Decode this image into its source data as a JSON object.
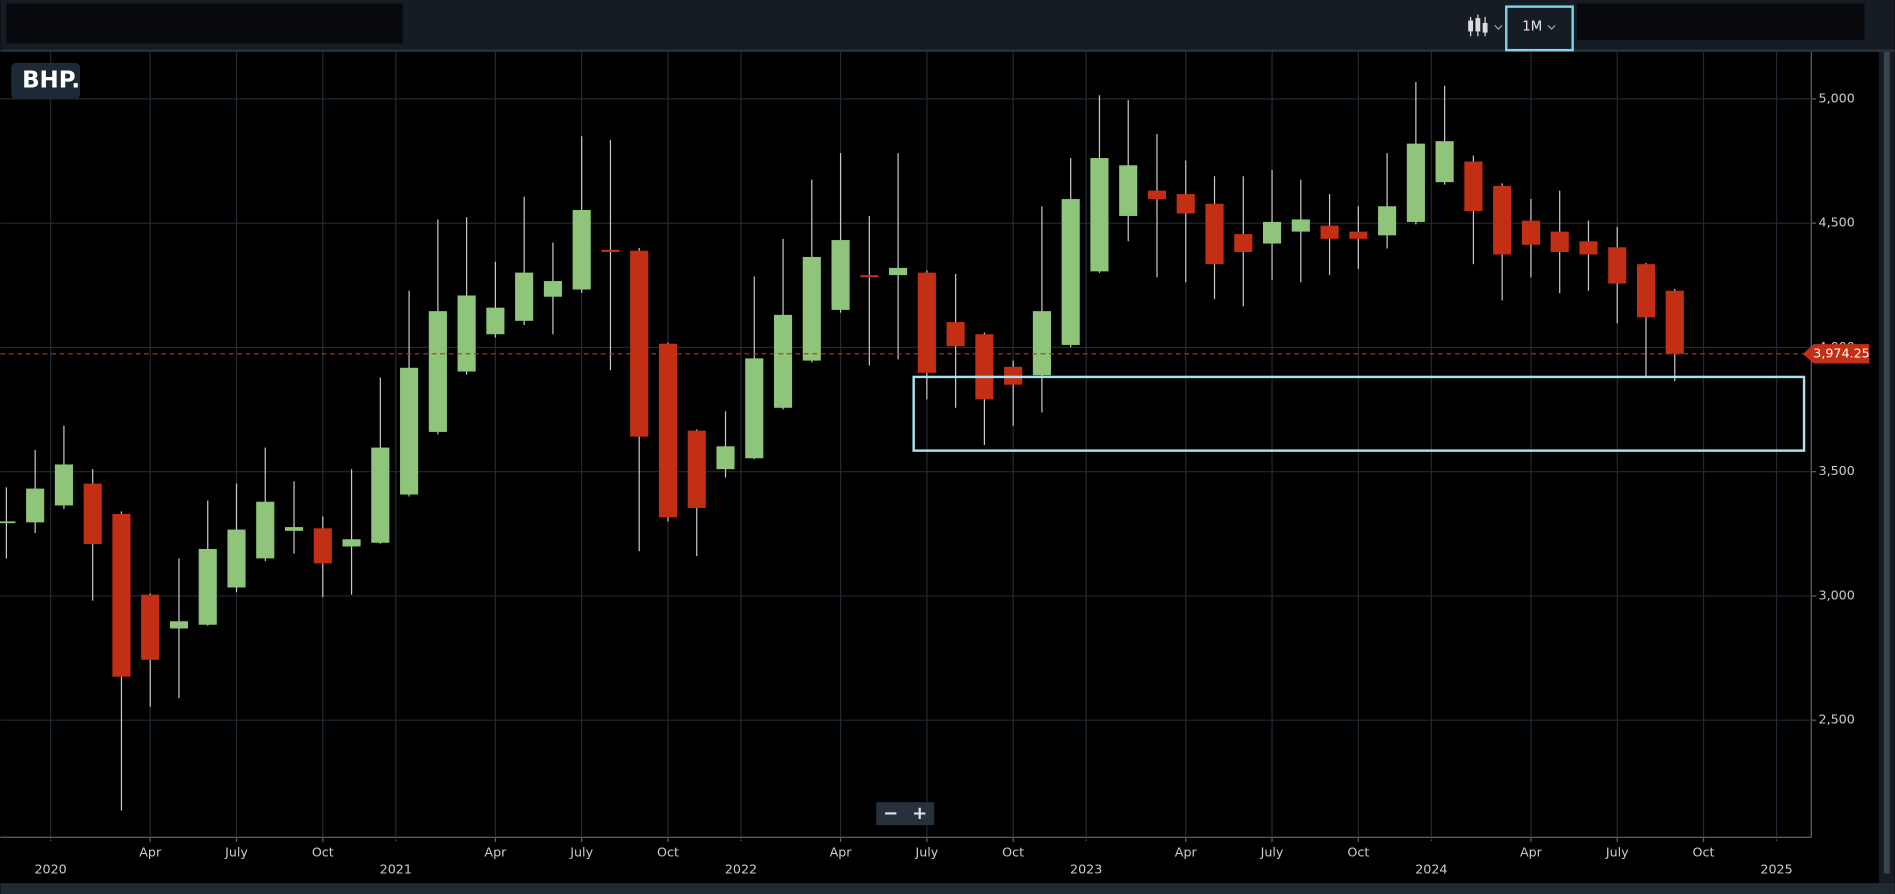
{
  "ui": {
    "symbol": "BHP.",
    "interval": "1M",
    "zoom_out": "−",
    "zoom_in": "+"
  },
  "chart_data": {
    "type": "candlestick",
    "categories": [
      null,
      null,
      "2020",
      null,
      null,
      "Apr",
      null,
      null,
      "July",
      null,
      null,
      "Oct",
      null,
      null,
      "2021",
      null,
      null,
      "Apr",
      null,
      null,
      "July",
      null,
      null,
      "Oct",
      null,
      null,
      "2022",
      null,
      null,
      "Apr",
      null,
      null,
      "July",
      null,
      null,
      "Oct",
      null,
      null,
      "2023",
      null,
      null,
      "Apr",
      null,
      null,
      "July",
      null,
      null,
      "Oct",
      null,
      null,
      "2024",
      null,
      null,
      "Apr",
      null,
      null,
      "July",
      null,
      null,
      "Oct",
      null,
      null,
      "2025"
    ],
    "open": [
      3296,
      3296,
      3364,
      3452,
      3330,
      3005,
      2869,
      2884,
      3034,
      3151,
      3262,
      3272,
      3199,
      3214,
      3408,
      3660,
      3903,
      4053,
      4107,
      4204,
      4233,
      4393,
      4389,
      4015,
      3665,
      3510,
      3554,
      3757,
      3947,
      4151,
      4291,
      4291,
      4301,
      4102,
      4053,
      3922,
      3888,
      4010,
      4306,
      4529,
      4631,
      4617,
      4578,
      4456,
      4418,
      4466,
      4490,
      4466,
      4451,
      4505,
      4665,
      4748,
      4650,
      4510,
      4466,
      4427,
      4403,
      4335,
      4228,
      null,
      null,
      null,
      null
    ],
    "high": [
      3437,
      3587,
      3685,
      3510,
      3340,
      3010,
      3151,
      3384,
      3452,
      3597,
      3461,
      3320,
      3510,
      3879,
      4228,
      4515,
      4524,
      4345,
      4607,
      4422,
      4850,
      4835,
      4400,
      4020,
      3670,
      3743,
      4286,
      4437,
      4675,
      4782,
      4529,
      4782,
      4310,
      4296,
      4060,
      3947,
      4568,
      4762,
      5015,
      4995,
      4859,
      4752,
      4689,
      4689,
      4714,
      4675,
      4617,
      4568,
      4782,
      5068,
      5053,
      4772,
      4660,
      4597,
      4631,
      4510,
      4485,
      4340,
      4235,
      null,
      null,
      null,
      null
    ],
    "low": [
      3151,
      3253,
      3350,
      2981,
      2136,
      2554,
      2588,
      2880,
      3015,
      3140,
      3170,
      2995,
      3005,
      3210,
      3400,
      3650,
      3890,
      4040,
      4090,
      4053,
      4220,
      3908,
      3180,
      3300,
      3160,
      3476,
      3550,
      3750,
      3940,
      4140,
      3927,
      3952,
      3791,
      3757,
      3607,
      3685,
      3738,
      4000,
      4300,
      4427,
      4282,
      4262,
      4194,
      4165,
      4272,
      4262,
      4291,
      4316,
      4398,
      4495,
      4655,
      4335,
      4189,
      4282,
      4218,
      4228,
      4097,
      3879,
      3864,
      null,
      null,
      null,
      null
    ],
    "close": [
      3300,
      3432,
      3529,
      3209,
      2675,
      2743,
      2898,
      3189,
      3267,
      3379,
      3277,
      3131,
      3228,
      3597,
      3918,
      4146,
      4209,
      4160,
      4301,
      4267,
      4553,
      4384,
      3641,
      3316,
      3354,
      3602,
      3956,
      4131,
      4364,
      4432,
      4282,
      4320,
      3898,
      4005,
      3791,
      3850,
      4146,
      4597,
      4762,
      4733,
      4597,
      4539,
      4335,
      4384,
      4505,
      4515,
      4437,
      4437,
      4568,
      4820,
      4830,
      4549,
      4374,
      4413,
      4384,
      4374,
      4257,
      4121,
      3974.25,
      null,
      null,
      null,
      null
    ],
    "up_color": "#8fc57a",
    "down_color": "#c32f14",
    "ylim": [
      2029,
      5189
    ],
    "yticks": [
      {
        "value": 2500,
        "label": "2,500"
      },
      {
        "value": 3000,
        "label": "3,000"
      },
      {
        "value": 3500,
        "label": "3,500"
      },
      {
        "value": 4000,
        "label": "4,000"
      },
      {
        "value": 4500,
        "label": "4,500"
      },
      {
        "value": 5000,
        "label": "5,000"
      }
    ],
    "grid": true,
    "last_price": {
      "value": 3974.25,
      "label": "3,974.25"
    }
  }
}
